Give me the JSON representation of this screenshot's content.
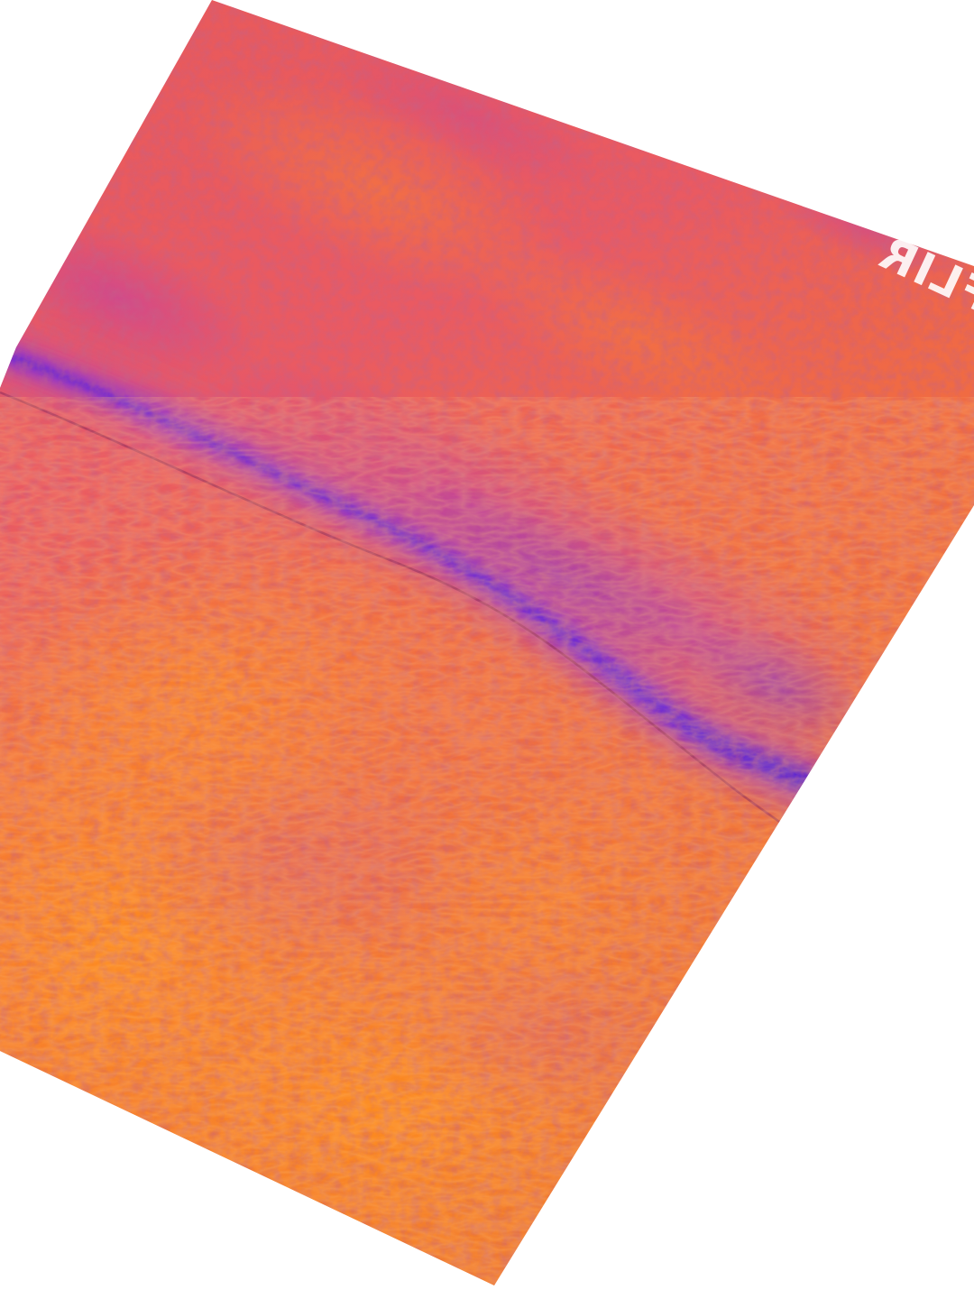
{
  "image": {
    "subject": "thermal-image",
    "palette": "iron",
    "background_color": "#ffffff",
    "colors": {
      "hot": "#ff8a1c",
      "warm": "#f36a3e",
      "mid": "#e8506a",
      "cool": "#c84a9e",
      "cold": "#7a2ee0",
      "coldest": "#4a1fd8"
    }
  },
  "watermark": {
    "text": "FLIR",
    "mirrored": true,
    "color": "#ffffff"
  }
}
